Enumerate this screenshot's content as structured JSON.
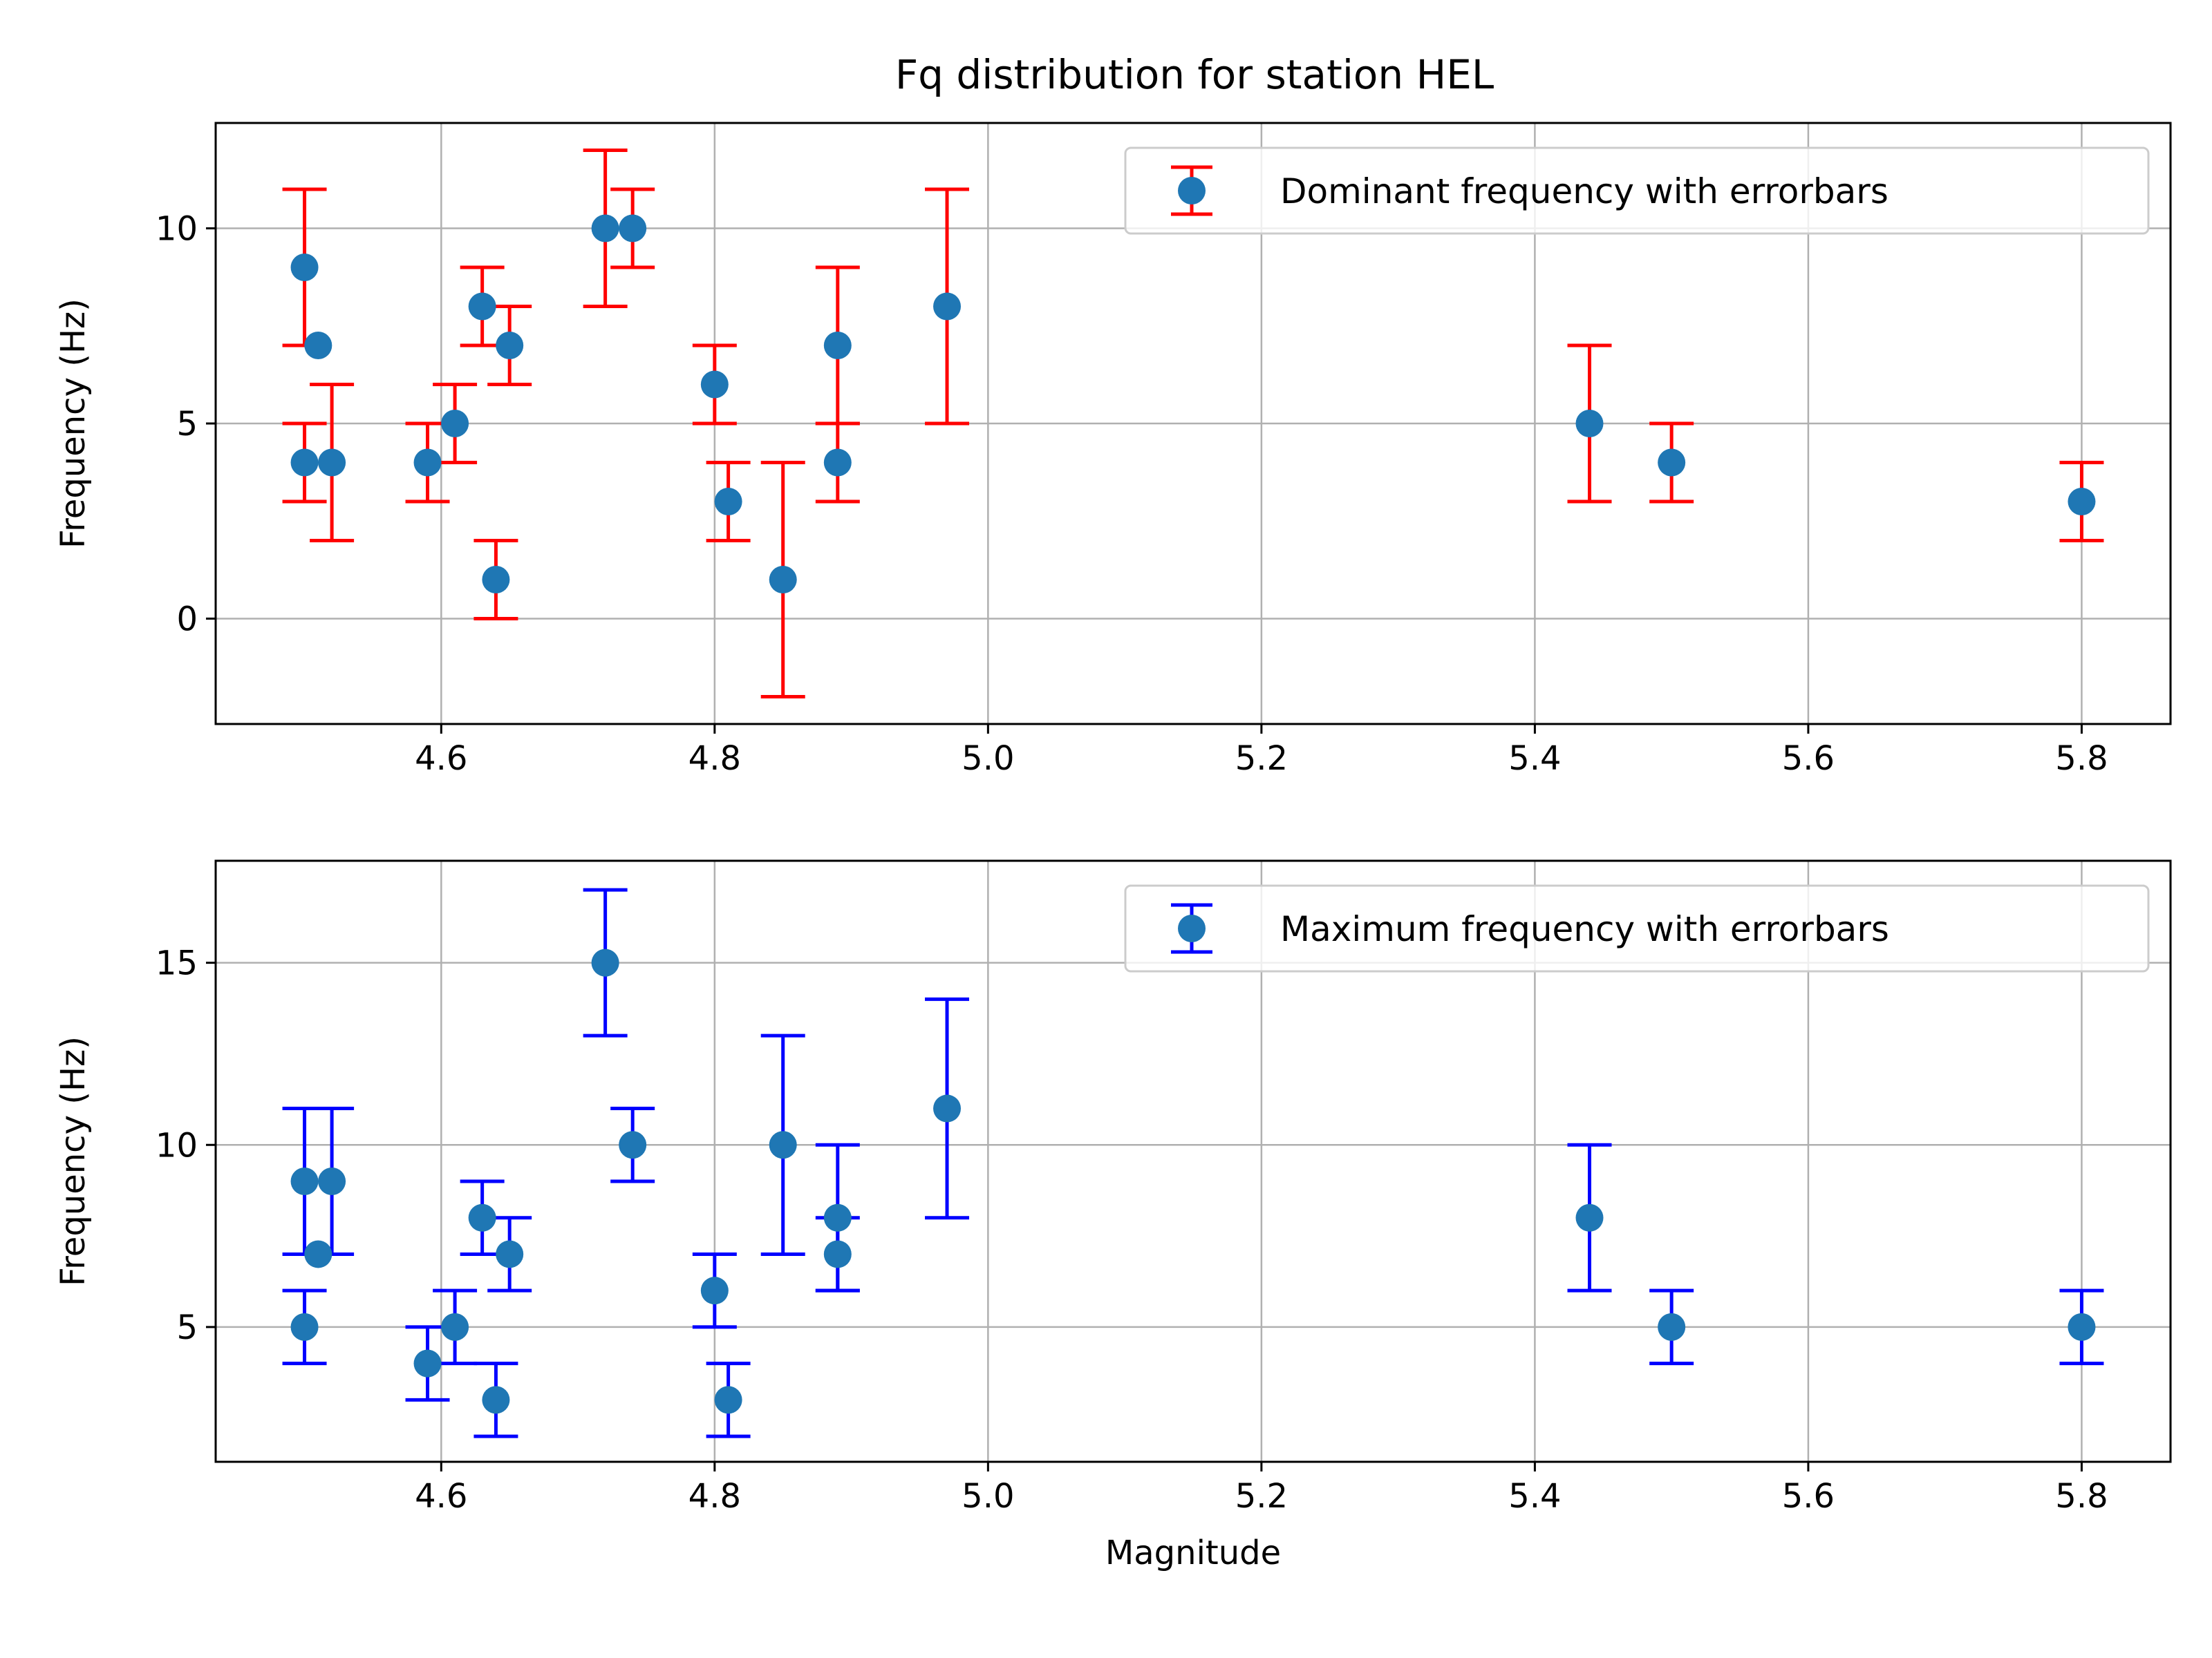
{
  "figure_title": "Fq distribution for station HEL",
  "chart_data": [
    {
      "type": "scatter",
      "title": "Fq distribution for station HEL",
      "xlabel": "",
      "ylabel": "Frequency (Hz)",
      "xlim": [
        4.435,
        5.865
      ],
      "ylim": [
        -2.7,
        12.7
      ],
      "xticks": [
        4.6,
        4.8,
        5.0,
        5.2,
        5.4,
        5.6,
        5.8
      ],
      "xtick_labels": [
        "4.6",
        "4.8",
        "5.0",
        "5.2",
        "5.4",
        "5.6",
        "5.8"
      ],
      "yticks": [
        0,
        5,
        10
      ],
      "ytick_labels": [
        "0",
        "5",
        "10"
      ],
      "grid": true,
      "legend_position": "top-right",
      "series": [
        {
          "name": "Dominant frequency with errorbars",
          "marker_color": "#1f77b4",
          "errorbar_color": "#ff0000",
          "x": [
            4.5,
            4.5,
            4.51,
            4.52,
            4.59,
            4.61,
            4.63,
            4.64,
            4.65,
            4.72,
            4.74,
            4.8,
            4.81,
            4.85,
            4.89,
            4.89,
            4.97,
            5.44,
            5.5,
            5.8
          ],
          "y": [
            9,
            4,
            7,
            4,
            4,
            5,
            8,
            1,
            7,
            10,
            10,
            6,
            3,
            1,
            7,
            4,
            8,
            5,
            4,
            3
          ],
          "yerr": [
            2,
            1,
            0,
            2,
            1,
            1,
            1,
            1,
            1,
            2,
            1,
            1,
            1,
            3,
            2,
            1,
            3,
            2,
            1,
            1
          ]
        }
      ]
    },
    {
      "type": "scatter",
      "title": "",
      "xlabel": "Magnitude",
      "ylabel": "Frequency (Hz)",
      "xlim": [
        4.435,
        5.865
      ],
      "ylim": [
        1.3,
        17.8
      ],
      "xticks": [
        4.6,
        4.8,
        5.0,
        5.2,
        5.4,
        5.6,
        5.8
      ],
      "xtick_labels": [
        "4.6",
        "4.8",
        "5.0",
        "5.2",
        "5.4",
        "5.6",
        "5.8"
      ],
      "yticks": [
        5,
        10,
        15
      ],
      "ytick_labels": [
        "5",
        "10",
        "15"
      ],
      "grid": true,
      "legend_position": "top-right",
      "series": [
        {
          "name": "Maximum frequency with errorbars",
          "marker_color": "#1f77b4",
          "errorbar_color": "#0000ff",
          "x": [
            4.5,
            4.5,
            4.51,
            4.52,
            4.59,
            4.61,
            4.63,
            4.64,
            4.65,
            4.72,
            4.74,
            4.8,
            4.81,
            4.85,
            4.89,
            4.89,
            4.97,
            5.44,
            5.5,
            5.8
          ],
          "y": [
            9,
            5,
            7,
            9,
            4,
            5,
            8,
            3,
            7,
            15,
            10,
            6,
            3,
            10,
            8,
            7,
            11,
            8,
            5,
            5
          ],
          "yerr": [
            2,
            1,
            0,
            2,
            1,
            1,
            1,
            1,
            1,
            2,
            1,
            1,
            1,
            3,
            2,
            1,
            3,
            2,
            1,
            1
          ]
        }
      ]
    }
  ]
}
